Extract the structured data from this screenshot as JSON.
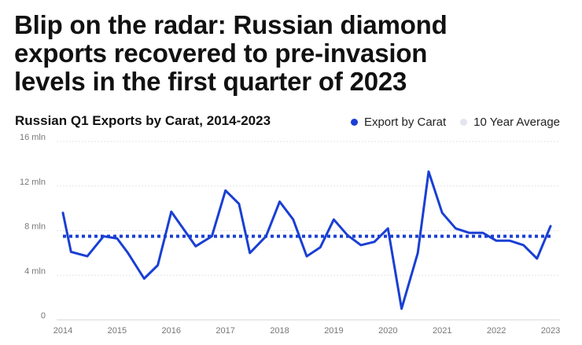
{
  "header": {
    "title_lines": [
      "Blip on the radar: Russian diamond",
      "exports recovered to pre-invasion",
      "levels in the first quarter of 2023"
    ],
    "subtitle": "Russian Q1 Exports by Carat, 2014-2023"
  },
  "legend": [
    {
      "label": "Export by Carat",
      "color": "#1a3fd4"
    },
    {
      "label": "10 Year Average",
      "color": "#e2e4ee"
    }
  ],
  "chart_data": {
    "type": "line",
    "title": "Russian Q1 Exports by Carat, 2014-2023",
    "xlabel": "",
    "ylabel": "",
    "ylim": [
      0,
      16
    ],
    "y_ticks": [
      {
        "value": 0,
        "label": "0"
      },
      {
        "value": 4,
        "label": "4 mln"
      },
      {
        "value": 8,
        "label": "8 mln"
      },
      {
        "value": 12,
        "label": "12 mln"
      },
      {
        "value": 16,
        "label": "16 mln"
      }
    ],
    "xlim": [
      2014,
      2023.2
    ],
    "x_ticks": [
      "2014",
      "2015",
      "2016",
      "2017",
      "2018",
      "2019",
      "2020",
      "2021",
      "2022",
      "2023"
    ],
    "grid": true,
    "legend_position": "top-right",
    "series": [
      {
        "name": "Export by Carat",
        "color": "#1a3fd4",
        "style": "solid",
        "points": [
          [
            2014.0,
            9.6
          ],
          [
            2014.15,
            6.1
          ],
          [
            2014.45,
            5.7
          ],
          [
            2014.75,
            7.5
          ],
          [
            2015.0,
            7.3
          ],
          [
            2015.2,
            6.0
          ],
          [
            2015.5,
            3.7
          ],
          [
            2015.75,
            4.9
          ],
          [
            2016.0,
            9.7
          ],
          [
            2016.45,
            6.6
          ],
          [
            2016.75,
            7.5
          ],
          [
            2017.0,
            11.6
          ],
          [
            2017.25,
            10.4
          ],
          [
            2017.45,
            6.0
          ],
          [
            2017.75,
            7.5
          ],
          [
            2018.0,
            10.6
          ],
          [
            2018.25,
            9.0
          ],
          [
            2018.5,
            5.7
          ],
          [
            2018.75,
            6.5
          ],
          [
            2019.0,
            9.0
          ],
          [
            2019.25,
            7.6
          ],
          [
            2019.5,
            6.7
          ],
          [
            2019.75,
            7.0
          ],
          [
            2020.0,
            8.2
          ],
          [
            2020.25,
            1.0
          ],
          [
            2020.55,
            6.0
          ],
          [
            2020.75,
            13.3
          ],
          [
            2021.0,
            9.6
          ],
          [
            2021.25,
            8.2
          ],
          [
            2021.5,
            7.8
          ],
          [
            2021.75,
            7.8
          ],
          [
            2022.0,
            7.1
          ],
          [
            2022.25,
            7.1
          ],
          [
            2022.5,
            6.7
          ],
          [
            2022.75,
            5.5
          ],
          [
            2023.0,
            8.4
          ]
        ]
      },
      {
        "name": "10 Year Average",
        "color": "#1a3fd4",
        "style": "dotted",
        "points": [
          [
            2014.0,
            7.5
          ],
          [
            2023.0,
            7.5
          ]
        ]
      }
    ]
  }
}
